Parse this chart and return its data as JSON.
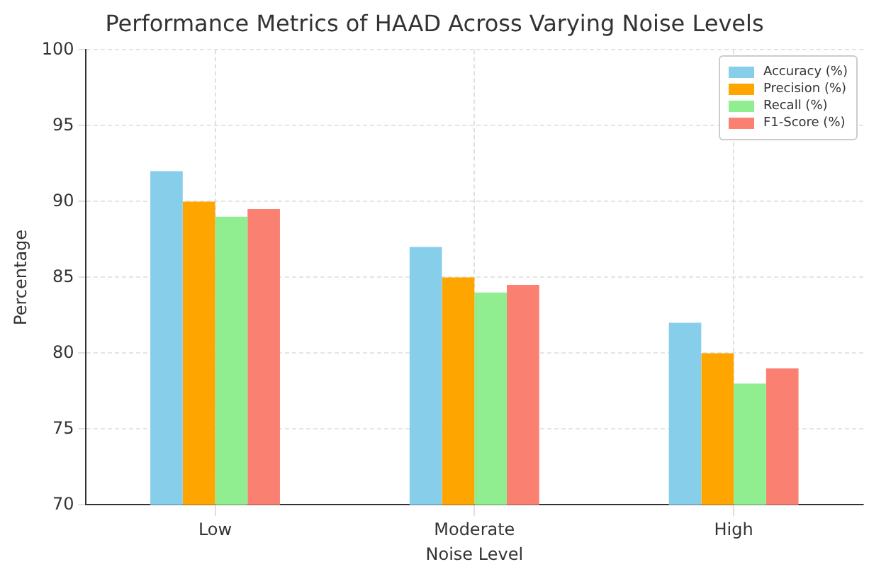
{
  "chart_data": {
    "type": "bar",
    "title": "Performance Metrics of HAAD Across Varying Noise Levels",
    "xlabel": "Noise Level",
    "ylabel": "Percentage",
    "categories": [
      "Low",
      "Moderate",
      "High"
    ],
    "series": [
      {
        "name": "Accuracy (%)",
        "color": "#87ceeb",
        "values": [
          92,
          87,
          82
        ]
      },
      {
        "name": "Precision (%)",
        "color": "#ffa500",
        "values": [
          90,
          85,
          80
        ]
      },
      {
        "name": "Recall (%)",
        "color": "#90ee90",
        "values": [
          89,
          84,
          78
        ]
      },
      {
        "name": "F1-Score (%)",
        "color": "#fa8072",
        "values": [
          89.5,
          84.5,
          79
        ]
      }
    ],
    "ylim": [
      70,
      100
    ],
    "yticks": [
      70,
      75,
      80,
      85,
      90,
      95,
      100
    ],
    "grid": true,
    "legend": "top right"
  }
}
